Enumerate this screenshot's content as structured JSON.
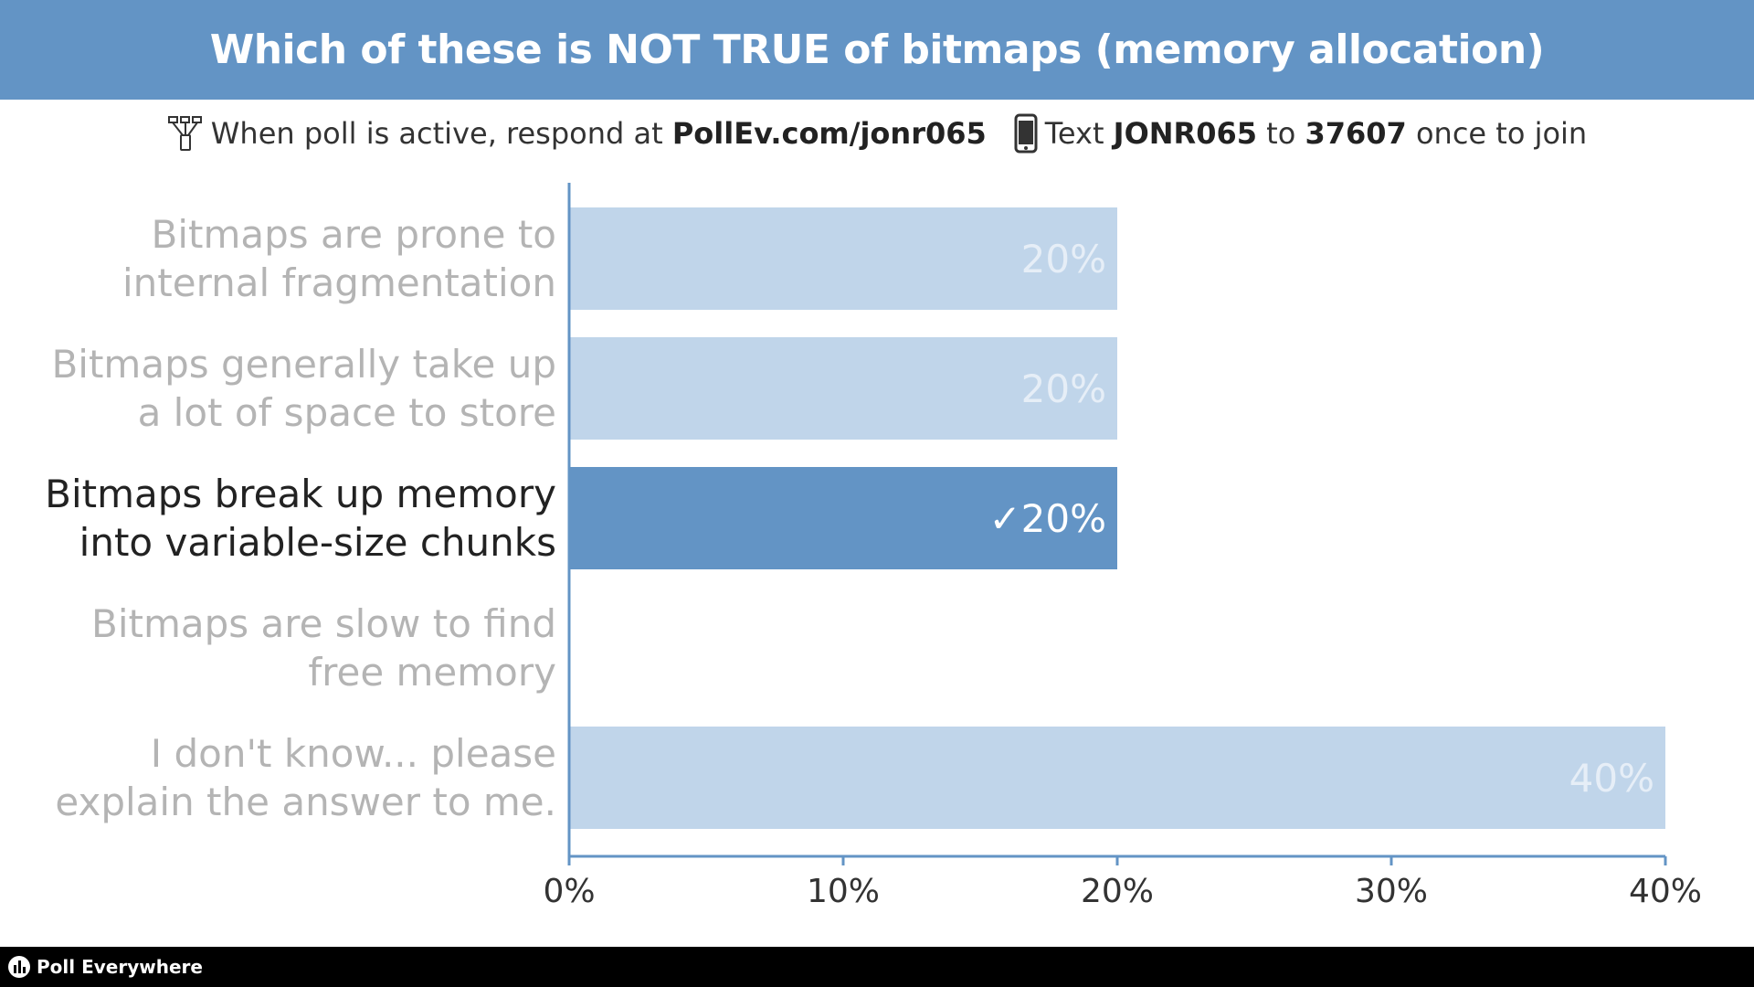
{
  "header": {
    "title": "Which of these is NOT TRUE of bitmaps (memory allocation)"
  },
  "instructions": {
    "web_prefix": "When poll is active, respond at",
    "web_url": "PollEv.com/jonr065",
    "text_prefix": "Text",
    "text_code": "JONR065",
    "text_to": "to",
    "text_number": "37607",
    "text_suffix": "once to join",
    "web_icon": "network-icon",
    "phone_icon": "phone-icon"
  },
  "footer": {
    "brand": "Poll Everywhere",
    "brand_icon": "poll-everywhere-logo-icon"
  },
  "colors": {
    "bar_normal": "#c0d5ea",
    "bar_correct": "#6394c5",
    "label_dim": "#b4b4b4",
    "label_correct": "#222222",
    "value_dim": "#e6eef7",
    "value_correct": "#ffffff",
    "axis": "#6394c5"
  },
  "chart_data": {
    "type": "bar",
    "orientation": "horizontal",
    "categories": [
      [
        "Bitmaps are prone to",
        "internal fragmentation"
      ],
      [
        "Bitmaps generally take up",
        "a lot of space to store"
      ],
      [
        "Bitmaps break up memory",
        "into variable-size chunks"
      ],
      [
        "Bitmaps are slow to find",
        "free memory"
      ],
      [
        "I don't know... please",
        "explain the answer to me."
      ]
    ],
    "values": [
      20,
      20,
      20,
      0,
      40
    ],
    "value_labels": [
      "20%",
      "20%",
      "20%",
      "",
      "40%"
    ],
    "correct_index": 2,
    "correct_mark": "✓",
    "xlim": [
      0,
      40
    ],
    "xticks": [
      0,
      10,
      20,
      30,
      40
    ],
    "xtick_labels": [
      "0%",
      "10%",
      "20%",
      "30%",
      "40%"
    ],
    "title": "Which of these is NOT TRUE of bitmaps (memory allocation)",
    "xlabel": "",
    "ylabel": "",
    "grid": false
  }
}
